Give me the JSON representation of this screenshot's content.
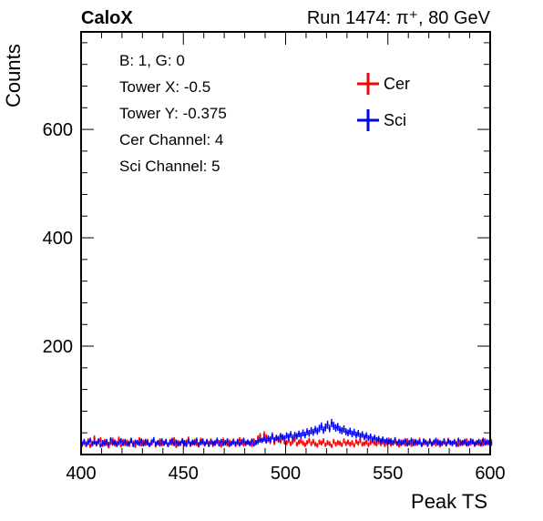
{
  "chart_data": {
    "type": "line",
    "header_left": "CaloX",
    "header_right": "Run 1474:   π⁺, 80 GeV",
    "xlabel": "Peak TS",
    "ylabel": "Counts",
    "xlim": [
      400,
      600
    ],
    "ylim": [
      0,
      780
    ],
    "x_ticks": [
      400,
      450,
      500,
      550,
      600
    ],
    "y_ticks": [
      200,
      400,
      600
    ],
    "info_lines": [
      "B: 1, G: 0",
      "Tower X: -0.5",
      "Tower Y: -0.375",
      "Cer Channel: 4",
      "Sci Channel: 5"
    ],
    "legend_position": "top-right",
    "grid": false,
    "series": [
      {
        "name": "Cer",
        "color": "#ff0000",
        "x_start": 400,
        "bin_width": 1,
        "values": [
          18,
          22,
          20,
          25,
          16,
          21,
          30,
          19,
          23,
          27,
          18,
          24,
          20,
          15,
          22,
          26,
          19,
          21,
          28,
          17,
          24,
          20,
          23,
          18,
          25,
          21,
          16,
          22,
          27,
          19,
          23,
          20,
          24,
          18,
          21,
          26,
          17,
          22,
          25,
          19,
          20,
          23,
          18,
          24,
          21,
          27,
          16,
          22,
          20,
          25,
          19,
          23,
          28,
          18,
          21,
          24,
          20,
          17,
          26,
          22,
          19,
          23,
          21,
          25,
          18,
          20,
          24,
          22,
          17,
          26,
          21,
          19,
          23,
          20,
          25,
          18,
          22,
          27,
          24,
          19,
          20,
          23,
          21,
          18,
          25,
          22,
          30,
          34,
          26,
          37,
          32,
          28,
          24,
          35,
          22,
          30,
          27,
          25,
          31,
          23,
          22,
          26,
          20,
          24,
          28,
          19,
          23,
          25,
          21,
          18,
          22,
          26,
          20,
          24,
          19,
          17,
          23,
          21,
          25,
          18,
          22,
          20,
          16,
          24,
          19,
          22,
          21,
          18,
          25,
          20,
          23,
          19,
          22,
          17,
          24,
          21,
          26,
          19,
          20,
          23,
          18,
          22,
          25,
          21,
          19,
          24,
          20,
          23,
          18,
          22,
          26,
          19,
          21,
          24,
          20,
          17,
          23,
          22,
          19,
          25,
          21,
          18,
          24,
          20,
          22,
          26,
          19,
          21,
          23,
          18,
          25,
          20,
          22,
          19,
          24,
          17,
          21,
          23,
          20,
          26,
          22,
          19,
          24,
          21,
          18,
          23,
          20,
          22,
          25,
          19,
          21,
          24,
          18,
          22,
          20,
          23,
          19,
          25,
          21,
          22,
          24
        ]
      },
      {
        "name": "Sci",
        "color": "#0000ff",
        "x_start": 400,
        "bin_width": 1,
        "values": [
          20,
          24,
          18,
          22,
          26,
          19,
          23,
          21,
          25,
          17,
          22,
          20,
          24,
          19,
          27,
          21,
          23,
          18,
          22,
          25,
          20,
          24,
          19,
          21,
          26,
          18,
          23,
          22,
          20,
          25,
          19,
          24,
          21,
          18,
          23,
          27,
          20,
          22,
          19,
          25,
          21,
          24,
          18,
          22,
          26,
          20,
          23,
          19,
          21,
          25,
          22,
          18,
          24,
          20,
          23,
          21,
          26,
          19,
          22,
          25,
          20,
          24,
          18,
          23,
          21,
          22,
          26,
          19,
          24,
          20,
          22,
          25,
          18,
          21,
          23,
          20,
          24,
          19,
          22,
          26,
          21,
          23,
          20,
          25,
          19,
          22,
          24,
          27,
          26,
          29,
          25,
          30,
          28,
          33,
          27,
          31,
          29,
          34,
          32,
          30,
          35,
          33,
          37,
          31,
          36,
          34,
          38,
          35,
          40,
          36,
          42,
          39,
          44,
          41,
          46,
          43,
          48,
          52,
          45,
          50,
          55,
          48,
          58,
          53,
          49,
          51,
          46,
          44,
          47,
          42,
          40,
          43,
          38,
          41,
          36,
          39,
          34,
          37,
          32,
          35,
          30,
          33,
          28,
          31,
          27,
          29,
          25,
          28,
          24,
          26,
          23,
          25,
          22,
          27,
          21,
          24,
          20,
          23,
          25,
          19,
          22,
          26,
          20,
          24,
          21,
          23,
          18,
          25,
          22,
          20,
          24,
          19,
          23,
          26,
          21,
          22,
          20,
          25,
          19,
          24,
          22,
          21,
          23,
          18,
          26,
          20,
          22,
          24,
          19,
          21,
          25,
          23,
          20,
          22,
          24,
          19,
          26,
          21,
          23,
          22,
          20
        ]
      }
    ]
  }
}
